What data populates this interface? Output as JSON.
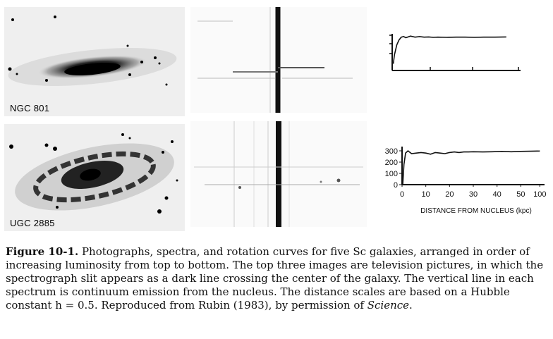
{
  "panels": [
    {
      "galaxy": "NGC 801"
    },
    {
      "galaxy": "UGC 2885"
    }
  ],
  "chart_data": [
    {
      "type": "line",
      "title": "",
      "xlabel": "",
      "ylabel": "",
      "series": [
        {
          "x": [
            0.5,
            1,
            2,
            3,
            4,
            5,
            6,
            8,
            10,
            12,
            14,
            16,
            18,
            20,
            24,
            28,
            32,
            36,
            40,
            45,
            50
          ],
          "y": [
            60,
            140,
            230,
            275,
            300,
            305,
            295,
            310,
            300,
            305,
            300,
            302,
            298,
            300,
            298,
            300,
            300,
            298,
            300,
            300,
            302
          ]
        }
      ]
    },
    {
      "type": "line",
      "title": "",
      "xlabel": "DISTANCE FROM NUCLEUS (kpc)",
      "ylabel": "",
      "x_ticks": [
        "0",
        "10",
        "20",
        "30",
        "40",
        "50",
        "100"
      ],
      "y_ticks": [
        "0",
        "100",
        "200",
        "300"
      ],
      "xlim": [
        0,
        60
      ],
      "ylim": [
        0,
        300
      ],
      "series": [
        {
          "x": [
            0.3,
            0.8,
            1.5,
            2.5,
            4,
            6,
            8,
            10,
            12,
            14,
            16,
            18,
            20,
            22,
            24,
            26,
            28,
            30,
            34,
            38,
            42,
            46,
            50,
            54,
            58
          ],
          "y": [
            0,
            180,
            280,
            300,
            275,
            280,
            285,
            280,
            270,
            285,
            280,
            275,
            285,
            290,
            285,
            290,
            290,
            292,
            290,
            292,
            295,
            292,
            295,
            296,
            298
          ]
        }
      ]
    }
  ],
  "caption": {
    "label": "Figure 10-1.",
    "text_before_italic": "Photographs, spectra, and rotation curves for five Sc galaxies, arranged in order of increasing luminosity from top to bottom. The top three images are television pictures, in which the spectrograph slit appears as a dark line crossing the center of the galaxy. The vertical line in each spectrum is continuum emission from the nucleus. The distance scales are based on a Hubble constant h = 0.5. Reproduced from Rubin (1983), by permission of",
    "italic": "Science",
    "after_italic": "."
  }
}
